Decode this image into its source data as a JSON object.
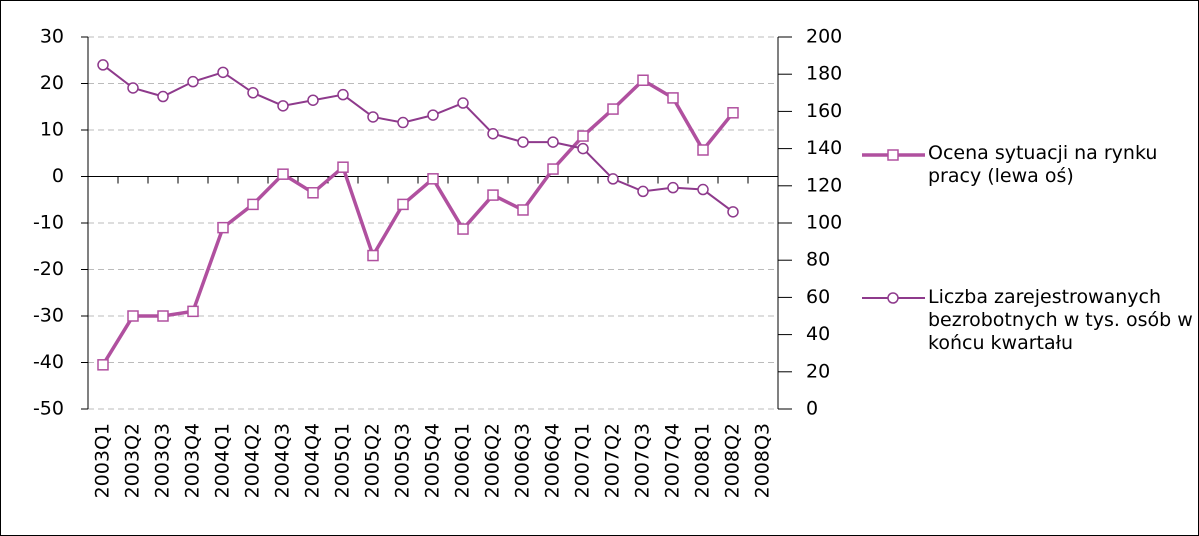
{
  "chart_data": {
    "type": "line",
    "categories": [
      "2003Q1",
      "2003Q2",
      "2003Q3",
      "2003Q4",
      "2004Q1",
      "2004Q2",
      "2004Q3",
      "2004Q4",
      "2005Q1",
      "2005Q2",
      "2005Q3",
      "2005Q4",
      "2006Q1",
      "2006Q2",
      "2006Q3",
      "2006Q4",
      "2007Q1",
      "2007Q2",
      "2007Q3",
      "2007Q4",
      "2008Q1",
      "2008Q2",
      "2008Q3"
    ],
    "series": [
      {
        "name": "Ocena sytuacji na rynku pracy (lewa oś)",
        "color": "#b0509f",
        "marker": "square",
        "axis": "y",
        "values": [
          -40.5,
          -30,
          -30,
          -29,
          -11,
          -6,
          0.5,
          -3.5,
          2,
          -17,
          -6,
          -0.5,
          -11.3,
          -4,
          -7.2,
          1.6,
          8.7,
          14.5,
          20.7,
          16.9,
          5.7,
          13.7,
          null
        ]
      },
      {
        "name": "Liczba zarejestrowanych bezrobotnych w tys. osób w końcu kwartału",
        "color": "#8e3a8c",
        "marker": "circle",
        "axis": "y2",
        "values": [
          185,
          172.6,
          168,
          176,
          181,
          170,
          163,
          166,
          169,
          157,
          154,
          158,
          164.5,
          148,
          143.5,
          143.5,
          140,
          123.7,
          117,
          119,
          118,
          106,
          null
        ]
      }
    ],
    "ylim": [
      -50,
      30
    ],
    "yticks": [
      -50,
      -40,
      -30,
      -20,
      -10,
      0,
      10,
      20,
      30
    ],
    "y2lim": [
      0,
      200
    ],
    "y2ticks": [
      0,
      20,
      40,
      60,
      80,
      100,
      120,
      140,
      160,
      180,
      200
    ],
    "grid": true,
    "legend": "right"
  }
}
